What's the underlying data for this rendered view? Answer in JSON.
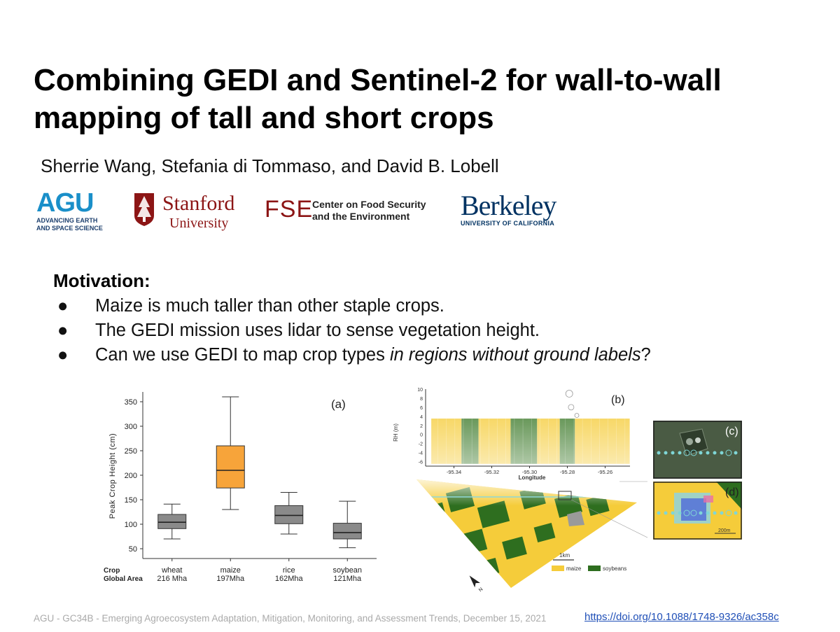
{
  "slide": {
    "title": "Combining GEDI and Sentinel-2 for wall-to-wall mapping of tall and short crops",
    "authors": "Sherrie Wang, Stefania di Tommaso, and David B. Lobell",
    "motivation_heading": "Motivation:",
    "bullets": [
      {
        "text": "Maize is much taller than other staple crops."
      },
      {
        "text": "The GEDI mission uses lidar to sense vegetation height."
      },
      {
        "pre": "Can we use GEDI to map crop types ",
        "italic": "in regions without ground labels",
        "post": "?"
      }
    ],
    "bullet_symbol": "●",
    "footer": "AGU - GC34B - Emerging Agroecosystem Adaptation, Mitigation, Monitoring, and Assessment Trends, December 15, 2021",
    "doi": "https://doi.org/10.1088/1748-9326/ac358c"
  },
  "logos": {
    "agu": {
      "big": "AGU",
      "line1": "ADVANCING EARTH",
      "line2": "AND SPACE SCIENCE"
    },
    "stanford": {
      "name": "Stanford",
      "sub": "University"
    },
    "fse": {
      "abbr": "FSE",
      "line1": "Center on Food Security",
      "line2": "and the Environment"
    },
    "berkeley": {
      "name": "Berkeley",
      "sub": "UNIVERSITY OF CALIFORNIA"
    }
  },
  "chart_data": [
    {
      "type": "boxplot",
      "panel_label": "(a)",
      "ylabel": "Peak Crop Height (cm)",
      "ylim": [
        30,
        370
      ],
      "yticks": [
        50,
        100,
        150,
        200,
        250,
        300,
        350
      ],
      "row_labels": [
        "Crop",
        "Global Area"
      ],
      "categories": [
        "wheat",
        "maize",
        "rice",
        "soybean"
      ],
      "areas": [
        "216 Mha",
        "197Mha",
        "162Mha",
        "121Mha"
      ],
      "boxes": [
        {
          "min": 70,
          "q1": 91,
          "median": 104,
          "q3": 120,
          "max": 141,
          "color": "#8a8a8a"
        },
        {
          "min": 130,
          "q1": 174,
          "median": 210,
          "q3": 260,
          "max": 360,
          "color": "#f7a43a"
        },
        {
          "min": 80,
          "q1": 101,
          "median": 118,
          "q3": 138,
          "max": 165,
          "color": "#8a8a8a"
        },
        {
          "min": 52,
          "q1": 70,
          "median": 83,
          "q3": 102,
          "max": 147,
          "color": "#8a8a8a"
        }
      ]
    },
    {
      "type": "scatter",
      "panel_label": "(b)",
      "xlabel": "Longitude",
      "ylabel": "RH (m)",
      "xlim": [
        -95.355,
        -95.245
      ],
      "ylim": [
        -7,
        10
      ],
      "xticks": [
        -95.34,
        -95.32,
        -95.3,
        -95.28,
        -95.26
      ],
      "xtick_labels": [
        "-95.34",
        "-95.32",
        "-95.30",
        "-95.28",
        "-95.26"
      ],
      "yticks": [
        -6,
        -4,
        -2,
        0,
        2,
        4,
        6,
        8,
        10
      ],
      "ytick_labels": [
        "-6",
        "-4",
        "-2",
        "0",
        "2",
        "4",
        "6",
        "8",
        "10"
      ],
      "segments": [
        {
          "from": -95.352,
          "to": -95.336,
          "crop": "maize"
        },
        {
          "from": -95.336,
          "to": -95.327,
          "crop": "soybeans"
        },
        {
          "from": -95.327,
          "to": -95.31,
          "crop": "maize"
        },
        {
          "from": -95.31,
          "to": -95.296,
          "crop": "soybeans"
        },
        {
          "from": -95.296,
          "to": -95.284,
          "crop": "maize"
        },
        {
          "from": -95.284,
          "to": -95.276,
          "crop": "soybeans"
        },
        {
          "from": -95.276,
          "to": -95.247,
          "crop": "maize"
        }
      ],
      "series_colors": {
        "maize": "#f5cc3a",
        "soybeans": "#3d7a2a"
      }
    }
  ],
  "map": {
    "scale_label": "1km",
    "legend": [
      {
        "name": "maize",
        "color": "#f5cc3a"
      },
      {
        "name": "soybeans",
        "color": "#2e6e1f"
      }
    ],
    "north_label": "N",
    "inset_c_label": "(c)",
    "inset_d_label": "(d)",
    "inset_d_scale": "200m"
  }
}
